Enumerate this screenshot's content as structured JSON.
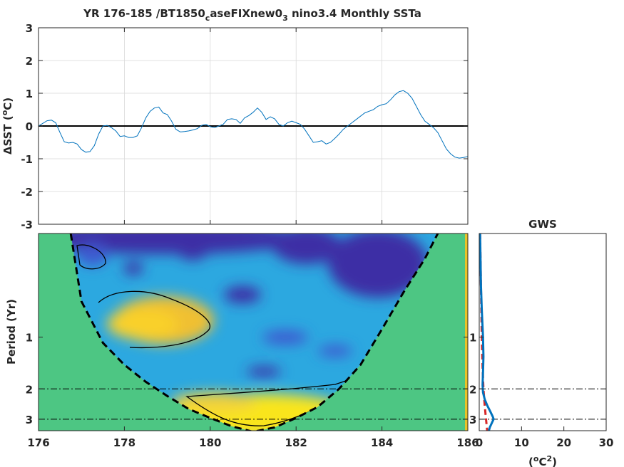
{
  "chart_data": [
    {
      "type": "line",
      "title": "YR 176-185 /BT1850_caseFIXnew0_3 nino3.4 Monthly SSTa",
      "title_parts": [
        "YR 176-185 /BT1850",
        "c",
        "aseFIXnew0",
        "3",
        " nino3.4 Monthly SSTa"
      ],
      "xlabel": "",
      "ylabel": "ΔSST (°C)",
      "ylabel_parts": [
        "ΔSST (",
        "o",
        "C)"
      ],
      "xlim": [
        176,
        186
      ],
      "ylim": [
        -3,
        3
      ],
      "xticks": [
        176,
        178,
        180,
        182,
        184,
        186
      ],
      "yticks": [
        -3,
        -2,
        -1,
        0,
        1,
        2,
        3
      ],
      "grid": true,
      "zero_line": 0,
      "series": [
        {
          "color": "#0072bd",
          "x": [
            176.0,
            176.1,
            176.2,
            176.3,
            176.4,
            176.5,
            176.6,
            176.7,
            176.8,
            176.9,
            177.0,
            177.1,
            177.2,
            177.3,
            177.4,
            177.5,
            177.6,
            177.7,
            177.8,
            177.9,
            178.0,
            178.1,
            178.2,
            178.3,
            178.4,
            178.5,
            178.6,
            178.7,
            178.8,
            178.9,
            179.0,
            179.1,
            179.2,
            179.3,
            179.4,
            179.5,
            179.6,
            179.7,
            179.8,
            179.9,
            180.0,
            180.1,
            180.2,
            180.3,
            180.4,
            180.5,
            180.6,
            180.7,
            180.8,
            180.9,
            181.0,
            181.1,
            181.2,
            181.3,
            181.4,
            181.5,
            181.6,
            181.7,
            181.8,
            181.9,
            182.0,
            182.1,
            182.2,
            182.3,
            182.4,
            182.5,
            182.6,
            182.7,
            182.8,
            182.9,
            183.0,
            183.1,
            183.2,
            183.3,
            183.4,
            183.5,
            183.6,
            183.7,
            183.8,
            183.9,
            184.0,
            184.1,
            184.2,
            184.3,
            184.4,
            184.5,
            184.6,
            184.7,
            184.8,
            184.9,
            185.0,
            185.1,
            185.2,
            185.3,
            185.4,
            185.5,
            185.6,
            185.7,
            185.8,
            185.9,
            186.0
          ],
          "values": [
            0.0,
            0.08,
            0.16,
            0.18,
            0.1,
            -0.2,
            -0.48,
            -0.52,
            -0.5,
            -0.55,
            -0.72,
            -0.8,
            -0.78,
            -0.6,
            -0.25,
            0.0,
            0.02,
            -0.05,
            -0.15,
            -0.32,
            -0.3,
            -0.35,
            -0.35,
            -0.3,
            -0.05,
            0.25,
            0.45,
            0.55,
            0.58,
            0.4,
            0.35,
            0.15,
            -0.1,
            -0.18,
            -0.17,
            -0.15,
            -0.12,
            -0.08,
            0.02,
            0.05,
            -0.02,
            -0.05,
            0.0,
            0.05,
            0.2,
            0.22,
            0.2,
            0.08,
            0.25,
            0.32,
            0.42,
            0.55,
            0.42,
            0.2,
            0.28,
            0.22,
            0.05,
            0.0,
            0.1,
            0.15,
            0.1,
            0.05,
            -0.1,
            -0.3,
            -0.5,
            -0.48,
            -0.45,
            -0.55,
            -0.5,
            -0.38,
            -0.25,
            -0.1,
            0.0,
            0.1,
            0.2,
            0.3,
            0.4,
            0.45,
            0.5,
            0.6,
            0.65,
            0.68,
            0.8,
            0.95,
            1.05,
            1.08,
            1.0,
            0.85,
            0.6,
            0.35,
            0.15,
            0.05,
            -0.05,
            -0.2,
            -0.45,
            -0.7,
            -0.85,
            -0.95,
            -0.98,
            -0.96,
            -0.93
          ]
        }
      ]
    },
    {
      "type": "heatmap",
      "xlabel": "",
      "ylabel": "Period (Yr)",
      "xlim": [
        176,
        186
      ],
      "yscale": "log",
      "ylim": [
        0.25,
        3.5
      ],
      "xticks": [
        176,
        178,
        180,
        182,
        184,
        186
      ],
      "yticks": [
        1,
        2,
        3
      ],
      "reference_periods": [
        2,
        3
      ],
      "description_colors": {
        "low": "#3d2fa5",
        "mid": "#2ca8e0",
        "high": "#f9e51f",
        "cone_fill": "#4dc683"
      },
      "cone_of_influence": true,
      "cone_points": [
        [
          176.75,
          0.25
        ],
        [
          177.0,
          0.62
        ],
        [
          177.5,
          1.08
        ],
        [
          178.0,
          1.45
        ],
        [
          178.5,
          1.82
        ],
        [
          179.0,
          2.2
        ],
        [
          179.5,
          2.62
        ],
        [
          180.0,
          2.95
        ],
        [
          180.5,
          3.3
        ],
        [
          181.0,
          3.55
        ],
        [
          181.5,
          3.35
        ],
        [
          182.0,
          2.95
        ],
        [
          182.5,
          2.55
        ],
        [
          183.0,
          2.0
        ],
        [
          183.5,
          1.45
        ],
        [
          184.0,
          0.9
        ],
        [
          184.5,
          0.55
        ],
        [
          185.0,
          0.35
        ],
        [
          185.3,
          0.25
        ]
      ]
    },
    {
      "type": "line",
      "title": "GWS",
      "xlabel": "(°C²)",
      "xlabel_parts": [
        "(",
        "o",
        "C",
        "2",
        ")"
      ],
      "xlim": [
        0,
        30
      ],
      "xticks": [
        0,
        10,
        20,
        30
      ],
      "yticks": [
        2,
        3
      ],
      "reference_periods": [
        2,
        3
      ],
      "series": [
        {
          "color": "#0072bd",
          "period": [
            0.25,
            0.35,
            0.5,
            0.7,
            1.0,
            1.3,
            1.6,
            1.9,
            2.1,
            2.3,
            2.5,
            2.7,
            2.9,
            3.0,
            3.15,
            3.35,
            3.55
          ],
          "power": [
            0.2,
            0.3,
            0.4,
            0.6,
            0.9,
            1.0,
            0.9,
            0.8,
            0.9,
            1.3,
            1.9,
            2.6,
            3.2,
            3.4,
            3.0,
            2.5,
            2.2
          ]
        },
        {
          "color": "#d62728",
          "dashed": true,
          "period": [
            0.25,
            0.5,
            1.0,
            1.5,
            2.0,
            2.5,
            3.0,
            3.55
          ],
          "power": [
            0.2,
            0.4,
            0.6,
            0.8,
            1.0,
            1.3,
            1.6,
            1.9
          ]
        }
      ]
    }
  ]
}
